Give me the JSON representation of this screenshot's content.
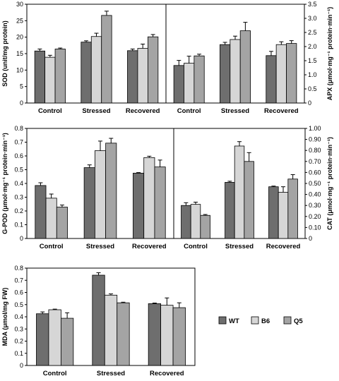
{
  "colors": {
    "WT": "#6e6e6e",
    "B6": "#d6d6d6",
    "Q5": "#a4a4a4"
  },
  "legend": [
    "WT",
    "B6",
    "Q5"
  ],
  "chart_data": [
    {
      "type": "bar",
      "panel": "SOD",
      "categories": [
        "Control",
        "Stressed",
        "Recovered"
      ],
      "ylabel": "SOD (unit/mg protein)",
      "ylim": [
        0,
        30
      ],
      "yticks": [
        "0",
        "5",
        "10",
        "15",
        "20",
        "25",
        "30"
      ],
      "series": [
        {
          "name": "WT",
          "values": [
            15.8,
            18.5,
            15.9
          ],
          "errors": [
            0.6,
            0.4,
            0.5
          ]
        },
        {
          "name": "B6",
          "values": [
            13.9,
            20.2,
            16.6
          ],
          "errors": [
            0.6,
            1.0,
            1.3
          ]
        },
        {
          "name": "Q5",
          "values": [
            16.4,
            26.6,
            20.1
          ],
          "errors": [
            0.3,
            1.3,
            0.7
          ]
        }
      ]
    },
    {
      "type": "bar",
      "panel": "APX",
      "categories": [
        "Control",
        "Stressed",
        "Recovered"
      ],
      "ylabel": "APX (μmol·mg⁻¹ protein·min⁻¹)",
      "ylim": [
        0,
        3.5
      ],
      "yticks": [
        "0",
        "0.5",
        "1.0",
        "1.5",
        "2.0",
        "2.5",
        "3.0",
        "3.5"
      ],
      "series": [
        {
          "name": "WT",
          "values": [
            1.33,
            2.07,
            1.68
          ],
          "errors": [
            0.18,
            0.08,
            0.15
          ]
        },
        {
          "name": "B6",
          "values": [
            1.41,
            2.25,
            2.07
          ],
          "errors": [
            0.25,
            0.12,
            0.1
          ]
        },
        {
          "name": "Q5",
          "values": [
            1.67,
            2.56,
            2.11
          ],
          "errors": [
            0.06,
            0.3,
            0.1
          ]
        }
      ]
    },
    {
      "type": "bar",
      "panel": "G-POD",
      "categories": [
        "Control",
        "Stressed",
        "Recovered"
      ],
      "ylabel": "G-POD (μmol·mg⁻¹ protein·min⁻¹)",
      "ylim": [
        0,
        0.8
      ],
      "yticks": [
        "0",
        "0.1",
        "0.2",
        "0.3",
        "0.4",
        "0.5",
        "0.6",
        "0.7",
        "0.8"
      ],
      "series": [
        {
          "name": "WT",
          "values": [
            0.385,
            0.515,
            0.475
          ],
          "errors": [
            0.02,
            0.02,
            0.004
          ]
        },
        {
          "name": "B6",
          "values": [
            0.293,
            0.638,
            0.588
          ],
          "errors": [
            0.03,
            0.07,
            0.01
          ]
        },
        {
          "name": "Q5",
          "values": [
            0.228,
            0.693,
            0.52
          ],
          "errors": [
            0.015,
            0.035,
            0.05
          ]
        }
      ]
    },
    {
      "type": "bar",
      "panel": "CAT",
      "categories": [
        "Control",
        "Stressed",
        "Recovered"
      ],
      "ylabel": "CAT (μmol·mg⁻¹ protein·min⁻¹)",
      "ylim": [
        0,
        1.0
      ],
      "yticks": [
        "0",
        "0.10",
        "0.20",
        "0.30",
        "0.40",
        "0.50",
        "0.60",
        "0.70",
        "0.80",
        "0.90",
        "1.00"
      ],
      "series": [
        {
          "name": "WT",
          "values": [
            0.3,
            0.51,
            0.47
          ],
          "errors": [
            0.025,
            0.01,
            0.006
          ]
        },
        {
          "name": "B6",
          "values": [
            0.31,
            0.84,
            0.42
          ],
          "errors": [
            0.02,
            0.04,
            0.05
          ]
        },
        {
          "name": "Q5",
          "values": [
            0.21,
            0.7,
            0.54
          ],
          "errors": [
            0.008,
            0.08,
            0.04
          ]
        }
      ]
    },
    {
      "type": "bar",
      "panel": "MDA",
      "categories": [
        "Control",
        "Stressed",
        "Recovered"
      ],
      "ylabel": "MDA (μmol/mg FW)",
      "ylim": [
        0,
        0.8
      ],
      "yticks": [
        "0",
        "0.1",
        "0.2",
        "0.3",
        "0.4",
        "0.5",
        "0.6",
        "0.7",
        "0.8"
      ],
      "series": [
        {
          "name": "WT",
          "values": [
            0.425,
            0.742,
            0.508
          ],
          "errors": [
            0.015,
            0.02,
            0.005
          ]
        },
        {
          "name": "B6",
          "values": [
            0.458,
            0.578,
            0.495
          ],
          "errors": [
            0.005,
            0.01,
            0.06
          ]
        },
        {
          "name": "Q5",
          "values": [
            0.388,
            0.515,
            0.475
          ],
          "errors": [
            0.045,
            0.005,
            0.04
          ]
        }
      ]
    }
  ]
}
